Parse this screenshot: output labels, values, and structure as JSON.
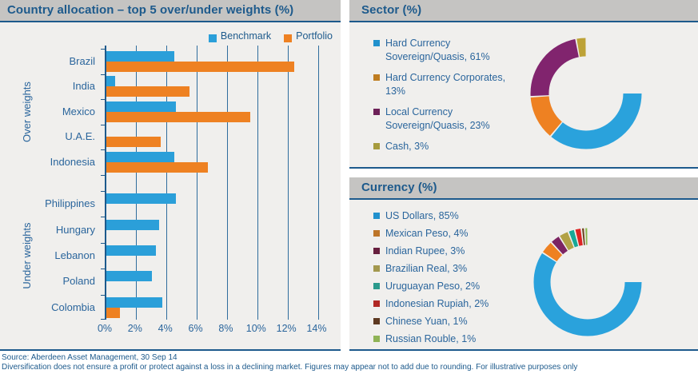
{
  "panels": {
    "country": {
      "title": "Country allocation – top 5 over/under weights (%)"
    },
    "sector": {
      "title": "Sector (%)"
    },
    "currency": {
      "title": "Currency (%)"
    }
  },
  "chart_data": [
    {
      "id": "country",
      "type": "bar",
      "orientation": "horizontal",
      "title": "Country allocation – top 5 over/under weights (%)",
      "xlim": [
        0,
        14
      ],
      "x_tick_labels": [
        "0%",
        "2%",
        "4%",
        "6%",
        "8%",
        "10%",
        "12%",
        "14%"
      ],
      "grid": "vertical",
      "legend_position": "top-right",
      "series": [
        {
          "name": "Benchmark",
          "color": "#2b9fd9"
        },
        {
          "name": "Portfolio",
          "color": "#ee8122"
        }
      ],
      "groups": [
        {
          "name": "Over weights",
          "categories": [
            "Brazil",
            "India",
            "Mexico",
            "U.A.E.",
            "Indonesia"
          ],
          "values": {
            "Benchmark": [
              4.5,
              0.6,
              4.6,
              0,
              4.5
            ],
            "Portfolio": [
              12.4,
              5.5,
              9.5,
              3.6,
              6.7
            ]
          }
        },
        {
          "name": "Under weights",
          "categories": [
            "Philippines",
            "Hungary",
            "Lebanon",
            "Poland",
            "Colombia"
          ],
          "values": {
            "Benchmark": [
              4.6,
              3.5,
              3.3,
              3.0,
              3.7
            ],
            "Portfolio": [
              0,
              0,
              0,
              0,
              0.9
            ]
          }
        }
      ]
    },
    {
      "id": "sector",
      "type": "donut",
      "title": "Sector (%)",
      "start_angle": "top",
      "direction": "clockwise",
      "legend_position": "left",
      "segments": [
        {
          "label": "Hard Currency Sovereign/Quasis",
          "value": 61,
          "color": "#2aa2dc",
          "legend_color": "#2191cd"
        },
        {
          "label": "Hard Currency Corporates",
          "value": 13,
          "color": "#ee8122",
          "legend_color": "#bf7d21"
        },
        {
          "label": "Local Currency Sovereign/Quasis",
          "value": 23,
          "color": "#81246e",
          "legend_color": "#6d2158"
        },
        {
          "label": "Cash",
          "value": 3,
          "color": "#bda237",
          "legend_color": "#a69b3d"
        }
      ]
    },
    {
      "id": "currency",
      "type": "donut",
      "title": "Currency (%)",
      "start_angle": "top",
      "direction": "clockwise",
      "legend_position": "left",
      "segments": [
        {
          "label": "US Dollars",
          "value": 85,
          "color": "#2aa2dc",
          "legend_color": "#2191cd"
        },
        {
          "label": "Mexican Peso",
          "value": 4,
          "color": "#ee8122",
          "legend_color": "#bd7529"
        },
        {
          "label": "Indian Rupee",
          "value": 3,
          "color": "#7c2462",
          "legend_color": "#671f3e"
        },
        {
          "label": "Brazilian Real",
          "value": 3,
          "color": "#b2a246",
          "legend_color": "#a3984e"
        },
        {
          "label": "Uruguayan Peso",
          "value": 2,
          "color": "#17a897",
          "legend_color": "#2b9a8c"
        },
        {
          "label": "Indonesian Rupiah",
          "value": 2,
          "color": "#dd2423",
          "legend_color": "#b02724"
        },
        {
          "label": "Chinese Yuan",
          "value": 1,
          "color": "#6e4320",
          "legend_color": "#5d3921"
        },
        {
          "label": "Russian Rouble",
          "value": 1,
          "color": "#8cb951",
          "legend_color": "#8fb356"
        }
      ]
    }
  ],
  "footer": {
    "source": "Source: Aberdeen Asset Management, 30 Sep 14",
    "disclaimer": "Diversification does not ensure a profit or protect against a loss in a declining market. Figures may appear not to add due to rounding. For illustrative purposes only"
  }
}
